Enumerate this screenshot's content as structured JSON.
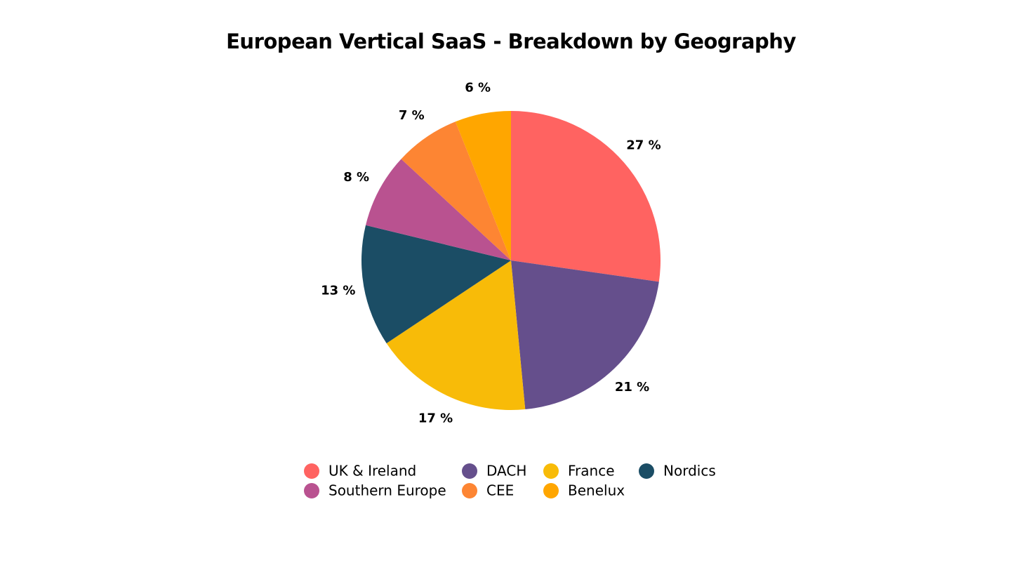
{
  "chart_data": {
    "type": "pie",
    "title": "European Vertical SaaS - Breakdown by Geography",
    "categories": [
      "UK & Ireland",
      "DACH",
      "France",
      "Nordics",
      "Southern Europe",
      "CEE",
      "Benelux"
    ],
    "values": [
      27,
      21,
      17,
      13,
      8,
      7,
      6
    ],
    "value_labels": [
      "27 %",
      "21 %",
      "17 %",
      "13 %",
      "8 %",
      "7 %",
      "6 %"
    ],
    "colors": [
      "#ff6361",
      "#654f8c",
      "#f8bb08",
      "#1b4d65",
      "#b95290",
      "#fd8533",
      "#ffa600"
    ]
  }
}
